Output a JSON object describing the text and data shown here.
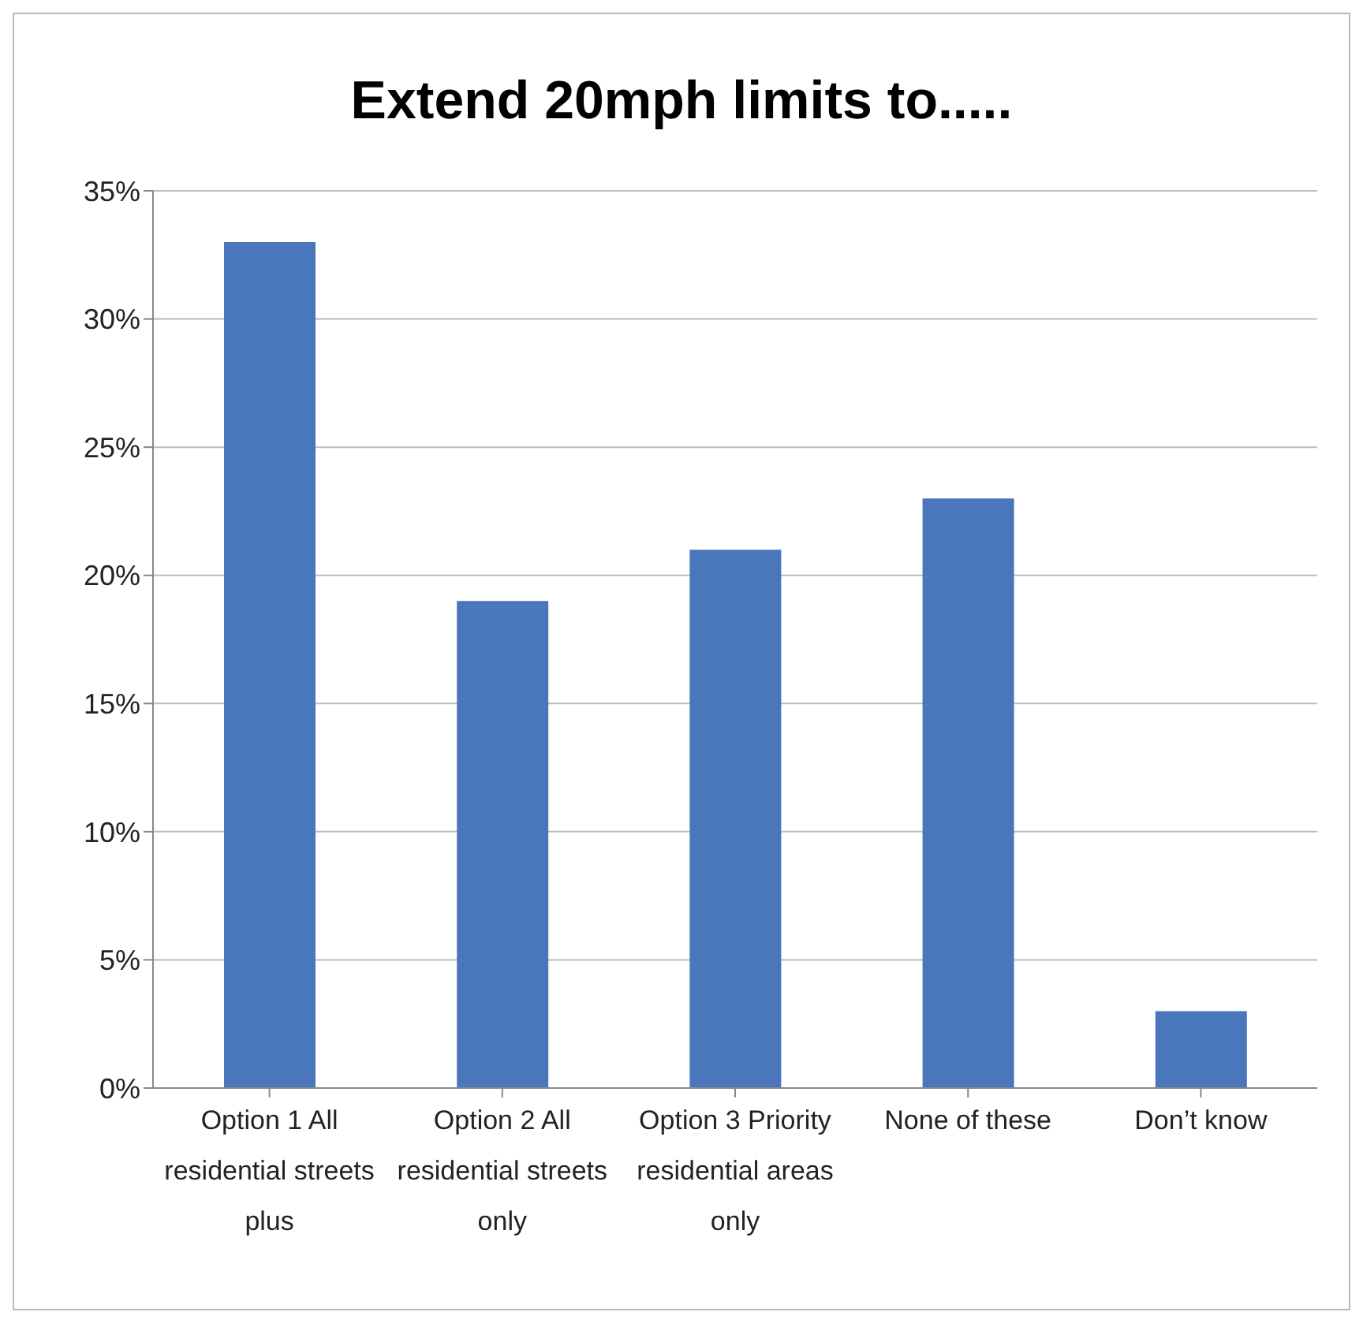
{
  "chart_data": {
    "type": "bar",
    "title": "Extend 20mph limits to.....",
    "categories": [
      "Option 1 All residential streets plus",
      "Option 2 All residential streets only",
      "Option 3 Priority residential areas only",
      "None of these",
      "Don’t know"
    ],
    "values": [
      33,
      19,
      21,
      23,
      3
    ],
    "color": "#4a76bb",
    "ylim": [
      0,
      35
    ],
    "yticks": [
      {
        "value": 0,
        "label": "0%"
      },
      {
        "value": 5,
        "label": "5%"
      },
      {
        "value": 10,
        "label": "10%"
      },
      {
        "value": 15,
        "label": "15%"
      },
      {
        "value": 20,
        "label": "20%"
      },
      {
        "value": 25,
        "label": "25%"
      },
      {
        "value": 30,
        "label": "30%"
      },
      {
        "value": 35,
        "label": "35%"
      }
    ],
    "grid": "y",
    "legend": false
  }
}
